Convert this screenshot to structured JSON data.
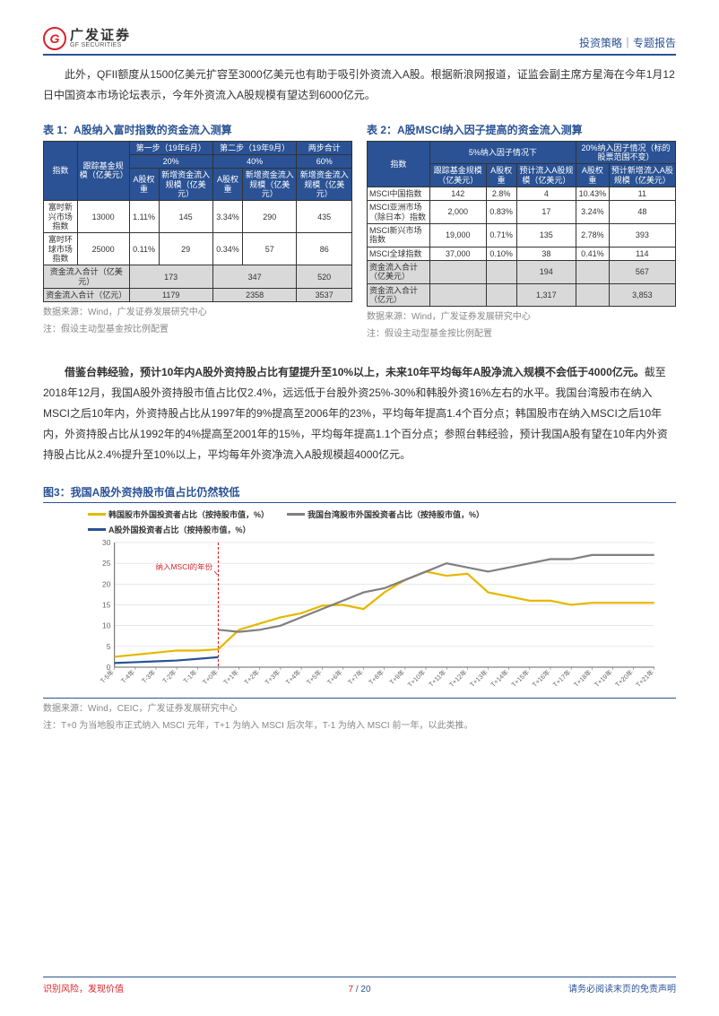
{
  "header": {
    "logo_cn": "广发证券",
    "logo_en": "GF SECURITIES",
    "right": "投资策略｜专题报告"
  },
  "intro": {
    "p1": "此外，QFII额度从1500亿美元扩容至3000亿美元也有助于吸引外资流入A股。根据新浪网报道，证监会副主席方星海在今年1月12日中国资本市场论坛表示，今年外资流入A股规模有望达到6000亿元。"
  },
  "table1": {
    "caption": "表 1：A股纳入富时指数的资金流入测算",
    "h_index": "指数",
    "h_fund": "跟踪基金规模（亿美元）",
    "h_step1": "第一步（19年6月）",
    "h_step2": "第二步（19年9月）",
    "h_sum": "两步合计",
    "h_p20": "20%",
    "h_p40": "40%",
    "h_p60": "60%",
    "h_aw": "A股权重",
    "h_add": "新增资金流入规模（亿美元）",
    "r1": {
      "name": "富时新兴市场指数",
      "fund": "13000",
      "w1": "1.11%",
      "a1": "145",
      "w2": "3.34%",
      "a2": "290",
      "sum": "435"
    },
    "r2": {
      "name": "富时环球市场指数",
      "fund": "25000",
      "w1": "0.11%",
      "a1": "29",
      "w2": "0.34%",
      "a2": "57",
      "sum": "86"
    },
    "r3": {
      "name": "资金流入合计（亿美元）",
      "a1": "173",
      "a2": "347",
      "sum": "520"
    },
    "r4": {
      "name": "资金流入合计（亿元）",
      "a1": "1179",
      "a2": "2358",
      "sum": "3537"
    },
    "src": "数据来源：Wind，广发证券发展研究中心",
    "note": "注：假设主动型基金按比例配置"
  },
  "table2": {
    "caption": "表 2：A股MSCI纳入因子提高的资金流入测算",
    "h_index": "指数",
    "h_5": "5%纳入因子情况下",
    "h_20": "20%纳入因子情况（标的股票范围不变）",
    "h_fund": "跟踪基金规模（亿美元）",
    "h_aw": "A股权重",
    "h_flow": "预计流入A股规模（亿美元）",
    "h_add": "预计新增流入A股规模（亿美元）",
    "r1": {
      "name": "MSCI中国指数",
      "fund": "142",
      "w1": "2.8%",
      "f1": "4",
      "w2": "10.43%",
      "f2": "11"
    },
    "r2": {
      "name": "MSCI亚洲市场（除日本）指数",
      "fund": "2,000",
      "w1": "0.83%",
      "f1": "17",
      "w2": "3.24%",
      "f2": "48"
    },
    "r3": {
      "name": "MSCI新兴市场指数",
      "fund": "19,000",
      "w1": "0.71%",
      "f1": "135",
      "w2": "2.78%",
      "f2": "393"
    },
    "r4": {
      "name": "MSCI全球指数",
      "fund": "37,000",
      "w1": "0.10%",
      "f1": "38",
      "w2": "0.41%",
      "f2": "114"
    },
    "r5": {
      "name": "资金流入合计（亿美元）",
      "f1": "194",
      "f2": "567"
    },
    "r6": {
      "name": "资金流入合计（亿元）",
      "f1": "1,317",
      "f2": "3,853"
    },
    "src": "数据来源：Wind，广发证券发展研究中心",
    "note": "注：假设主动型基金按比例配置"
  },
  "body2": {
    "lead": "借鉴台韩经验，预计10年内A股外资持股占比有望提升至10%以上，未来10年平均每年A股净流入规模不会低于4000亿元。",
    "rest": "截至2018年12月，我国A股外资持股市值占比仅2.4%，远远低于台股外资25%-30%和韩股外资16%左右的水平。我国台湾股市在纳入MSCI之后10年内，外资持股占比从1997年的9%提高至2006年的23%，平均每年提高1.4个百分点；韩国股市在纳入MSCI之后10年内，外资持股占比从1992年的4%提高至2001年的15%，平均每年提高1.1个百分点；参照台韩经验，预计我国A股有望在10年内外资持股占比从2.4%提升至10%以上，平均每年外资净流入A股规模超4000亿元。"
  },
  "fig3": {
    "caption": "图3：我国A股外资持股市值占比仍然较低",
    "legend": {
      "l1": {
        "text": "韩国股市外国投资者占比（按持股市值，%）",
        "color": "#e6b800"
      },
      "l2": {
        "text": "我国台湾股市外国投资者占比（按持股市值，%）",
        "color": "#808080"
      },
      "l3": {
        "text": "A股外国投资者占比（按持股市值，%）",
        "color": "#2a5294"
      }
    },
    "ylim": [
      0,
      30
    ],
    "yticks": [
      0,
      5,
      10,
      15,
      20,
      25,
      30
    ],
    "xticks": [
      "T-5年",
      "T-4年",
      "T-3年",
      "T-2年",
      "T-1年",
      "T+0年",
      "T+1年",
      "T+2年",
      "T+3年",
      "T+4年",
      "T+5年",
      "T+6年",
      "T+7年",
      "T+8年",
      "T+9年",
      "T+10年",
      "T+11年",
      "T+12年",
      "T+13年",
      "T+14年",
      "T+15年",
      "T+16年",
      "T+17年",
      "T+18年",
      "T+19年",
      "T+20年",
      "T+21年"
    ],
    "annotation": "纳入MSCI的年份",
    "series": {
      "korea": {
        "color": "#e6b800",
        "width": 2.2,
        "data": [
          2.5,
          3,
          3.5,
          4,
          4,
          4.3,
          9,
          10.5,
          12,
          13,
          14.8,
          15,
          14,
          18,
          21,
          23,
          22,
          22.5,
          18,
          17,
          16,
          16,
          15,
          15.5,
          15.5,
          15.5,
          15.5
        ]
      },
      "taiwan": {
        "color": "#808080",
        "width": 2.2,
        "data": [
          null,
          null,
          null,
          null,
          null,
          9,
          8.5,
          9,
          10,
          12,
          14,
          16,
          18,
          19,
          21,
          23,
          25,
          24,
          23,
          24,
          25,
          26,
          26,
          27,
          27,
          27,
          27
        ]
      },
      "ashare": {
        "color": "#2a5294",
        "width": 2.2,
        "data": [
          1.0,
          1.2,
          1.4,
          1.6,
          2.0,
          2.4,
          null,
          null,
          null,
          null,
          null,
          null,
          null,
          null,
          null,
          null,
          null,
          null,
          null,
          null,
          null,
          null,
          null,
          null,
          null,
          null,
          null
        ]
      }
    },
    "grid_color": "#d0d0d0",
    "axis_color": "#666",
    "vline_color": "#d8222a",
    "background": "#ffffff",
    "src": "数据来源：Wind，CEIC，广发证券发展研究中心",
    "note": "注：T+0 为当地股市正式纳入 MSCI 元年，T+1 为纳入 MSCI 后次年，T-1 为纳入 MSCI 前一年，以此类推。"
  },
  "footer": {
    "left": "识别风险，发现价值",
    "right": "请务必阅读末页的免责声明",
    "page": "7",
    "total": "/ 20"
  }
}
